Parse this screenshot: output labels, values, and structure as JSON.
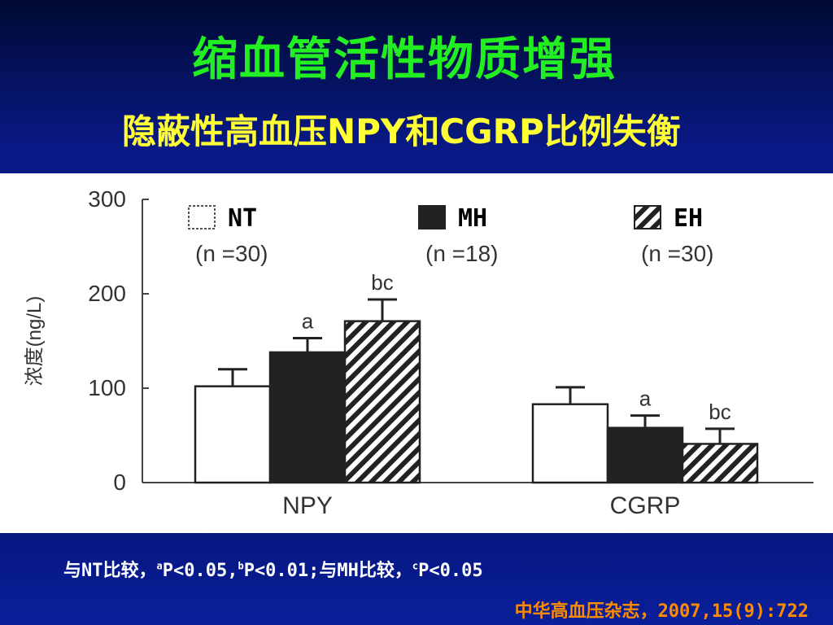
{
  "slide": {
    "title": "缩血管活性物质增强",
    "subtitle": "隐蔽性高血压NPY和CGRP比例失衡",
    "footnote_prefix": "与NT比较，",
    "footnote_a_sup": "a",
    "footnote_a_text": "P<0.05,",
    "footnote_b_sup": "b",
    "footnote_b_text": "P<0.01;与MH比较，",
    "footnote_c_sup": "c",
    "footnote_c_text": "P<0.05",
    "source": "中华高血压杂志，2007,15(9):722"
  },
  "chart_data": {
    "type": "bar",
    "ylabel": "浓度(ng/L)",
    "xlabel": "",
    "ylim": [
      0,
      300
    ],
    "yticks": [
      "0",
      "100",
      "200",
      "300"
    ],
    "categories": [
      "NPY",
      "CGRP"
    ],
    "series": [
      {
        "name": "NT",
        "n_label": "(n =30)",
        "values": [
          102,
          83
        ],
        "errors": [
          18,
          18
        ],
        "annotations": [
          "",
          ""
        ],
        "pattern": "white"
      },
      {
        "name": "MH",
        "n_label": "(n =18)",
        "values": [
          138,
          58
        ],
        "errors": [
          15,
          13
        ],
        "annotations": [
          "a",
          "a"
        ],
        "pattern": "black"
      },
      {
        "name": "EH",
        "n_label": "(n =30)",
        "values": [
          171,
          41
        ],
        "errors": [
          23,
          16
        ],
        "annotations": [
          "bc",
          "bc"
        ],
        "pattern": "hatched"
      }
    ]
  }
}
